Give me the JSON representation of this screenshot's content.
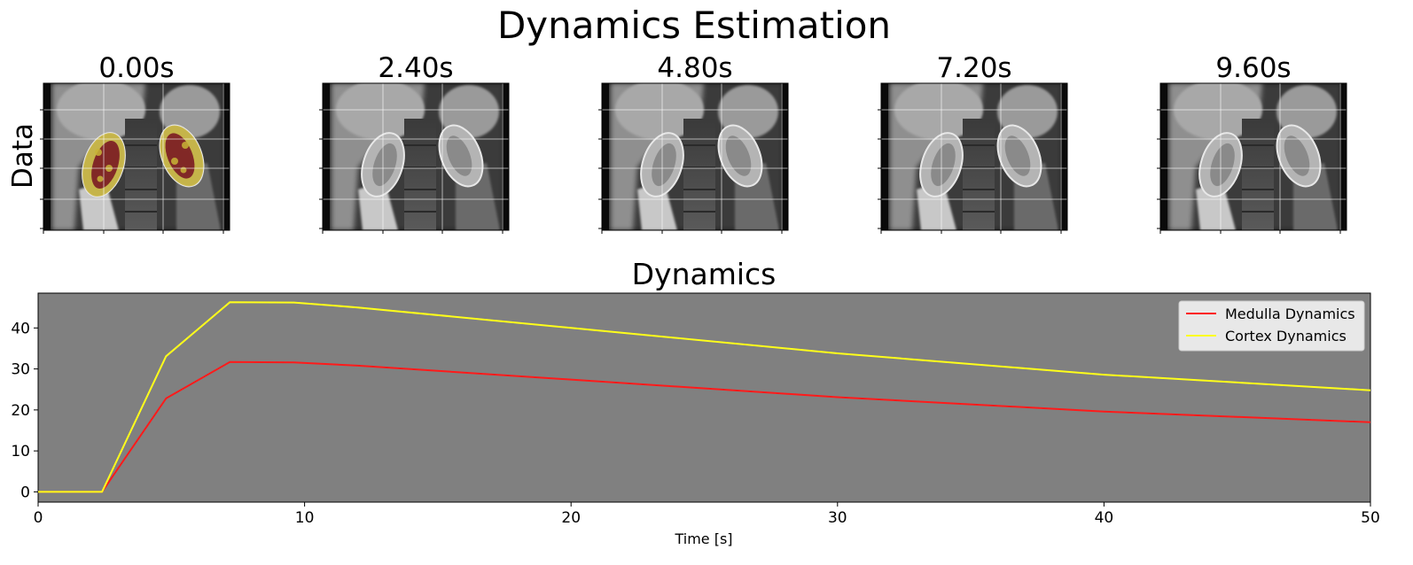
{
  "figure": {
    "title": "Dynamics Estimation",
    "row_label": "Data"
  },
  "frames": [
    {
      "label": "0.00s",
      "mask": true
    },
    {
      "label": "2.40s",
      "mask": false
    },
    {
      "label": "4.80s",
      "mask": false
    },
    {
      "label": "7.20s",
      "mask": false
    },
    {
      "label": "9.60s",
      "mask": false
    }
  ],
  "colors": {
    "plot_background": "#808080",
    "medulla": "#ff1a1a",
    "cortex": "#ffff1a",
    "mask_cortex": "#c8b437",
    "mask_medulla": "#7a1a24"
  },
  "chart_data": {
    "type": "line",
    "title": "Dynamics",
    "xlabel": "Time [s]",
    "ylabel": "",
    "xlim": [
      0,
      50
    ],
    "ylim": [
      -2.5,
      48.5
    ],
    "xticks": [
      0,
      10,
      20,
      30,
      40,
      50
    ],
    "yticks": [
      0,
      10,
      20,
      30,
      40
    ],
    "grid": false,
    "legend_position": "top-right",
    "series": [
      {
        "name": "Medulla Dynamics",
        "color": "#ff1a1a",
        "x": [
          0,
          2.4,
          4.8,
          7.2,
          9.6,
          12,
          20,
          30,
          40,
          50
        ],
        "y": [
          0,
          0,
          22.8,
          31.7,
          31.6,
          30.8,
          27.4,
          23.1,
          19.6,
          17.0
        ]
      },
      {
        "name": "Cortex Dynamics",
        "color": "#ffff1a",
        "x": [
          0,
          2.4,
          4.8,
          7.2,
          9.6,
          12,
          20,
          30,
          40,
          50
        ],
        "y": [
          0,
          0,
          33.1,
          46.3,
          46.2,
          45.0,
          40.0,
          33.8,
          28.6,
          24.8
        ]
      }
    ]
  }
}
